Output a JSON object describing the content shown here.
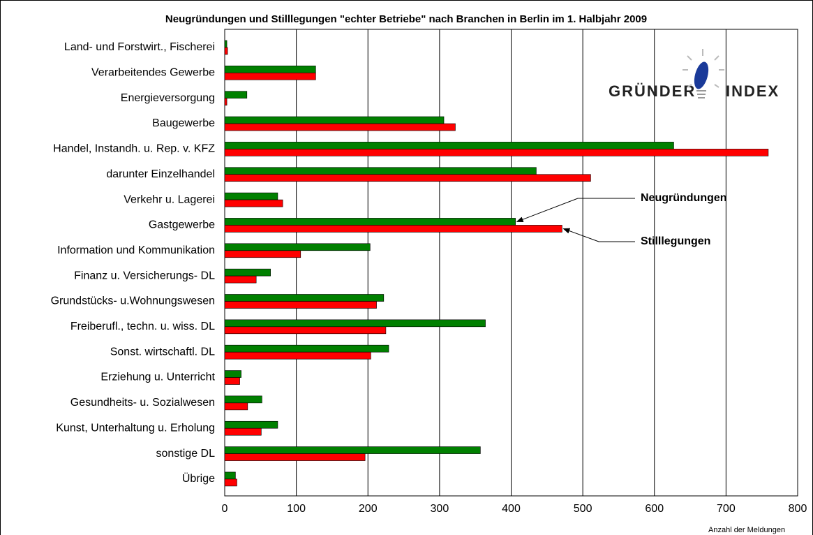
{
  "chart_data": {
    "type": "bar",
    "orientation": "horizontal",
    "title": "Neugründungen und Stilllegungen \"echter Betriebe\" nach Branchen in Berlin im 1. Halbjahr  2009",
    "categories": [
      "Land- und Forstwirt., Fischerei",
      "Verarbeitendes Gewerbe",
      "Energieversorgung",
      "Baugewerbe",
      "Handel, Instandh. u. Rep. v. KFZ",
      "darunter Einzelhandel",
      "Verkehr u. Lagerei",
      "Gastgewerbe",
      "Information und Kommunikation",
      "Finanz u. Versicherungs- DL",
      "Grundstücks- u.Wohnungswesen",
      "Freiberufl., techn. u. wiss. DL",
      "Sonst. wirtschaftl. DL",
      "Erziehung u. Unterricht",
      "Gesundheits- u. Sozialwesen",
      "Kunst, Unterhaltung u. Erholung",
      "sonstige DL",
      "Übrige"
    ],
    "series": [
      {
        "name": "Neugründungen",
        "color": "#008000",
        "values": [
          3,
          127,
          31,
          306,
          627,
          435,
          74,
          406,
          203,
          64,
          222,
          364,
          229,
          23,
          52,
          74,
          357,
          15
        ]
      },
      {
        "name": "Stilllegungen",
        "color": "#ff0000",
        "values": [
          4,
          127,
          3,
          322,
          759,
          511,
          81,
          471,
          106,
          44,
          212,
          225,
          204,
          21,
          32,
          51,
          196,
          17
        ]
      }
    ],
    "xlim": [
      0,
      800
    ],
    "xticks": [
      0,
      100,
      200,
      300,
      400,
      500,
      600,
      700,
      800
    ],
    "grid": true,
    "x_label": "Anzahl der Meldungen",
    "logo": {
      "left": "GRÜNDER",
      "right": "INDEX"
    }
  }
}
